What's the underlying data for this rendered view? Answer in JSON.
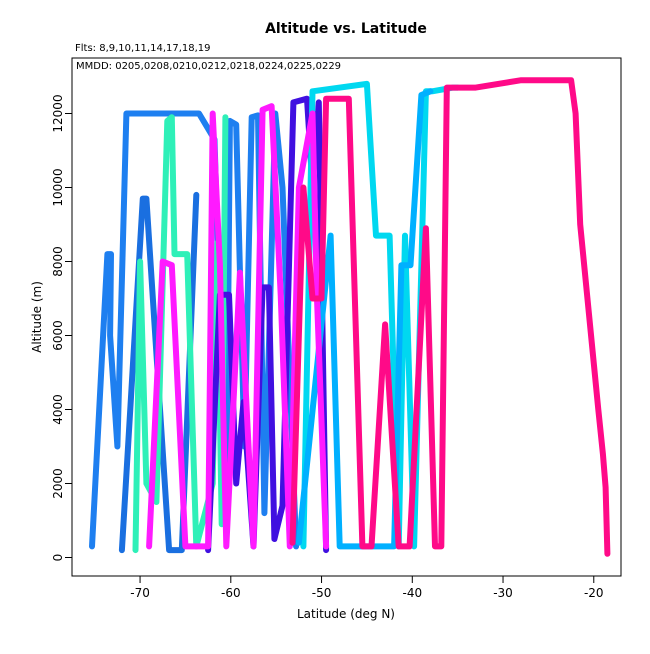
{
  "chart_data": {
    "type": "line",
    "title": "Altitude vs. Latitude",
    "subtitle": "Flts: 8,9,10,11,14,17,18,19",
    "annotation": "MMDD: 0205,0208,0210,0212,0218,0224,0225,0229",
    "xlabel": "Latitude (deg N)",
    "ylabel": "Altitude (m)",
    "xlim": [
      -77.5,
      -17
    ],
    "ylim": [
      -500,
      13500
    ],
    "x_ticks": [
      -70,
      -60,
      -50,
      -40,
      -30,
      -20
    ],
    "y_ticks": [
      0,
      2000,
      4000,
      6000,
      8000,
      10000,
      12000
    ],
    "grid": false,
    "series": [
      {
        "color": "#1e7ff0",
        "x": [
          -75.3,
          -73.6,
          -73.2,
          -73.3,
          -72.5,
          -71.5,
          -63.5,
          -61.8,
          -60.5,
          -60.1,
          -59.4,
          -58.5,
          -57.7,
          -57.0,
          -56.3,
          -55.1,
          -54.3,
          -52.8
        ],
        "y": [
          300,
          8200,
          8200,
          6000,
          3000,
          12000,
          12000,
          11300,
          900,
          11800,
          11700,
          3000,
          11900,
          11950,
          1200,
          12000,
          10000,
          300
        ]
      },
      {
        "color": "#1a6fe0",
        "x": [
          -72.0,
          -69.7,
          -69.3,
          -66.8,
          -65.4,
          -63.8
        ],
        "y": [
          200,
          9700,
          9700,
          200,
          200,
          9800
        ]
      },
      {
        "color": "#2ef0b8",
        "x": [
          -70.5,
          -70.0,
          -69.3,
          -68.2,
          -67.0,
          -66.5,
          -66.2,
          -64.8,
          -63.8,
          -62.0,
          -61.5,
          -61.0,
          -60.6
        ],
        "y": [
          200,
          8000,
          2000,
          1500,
          11800,
          11900,
          8200,
          8200,
          300,
          2000,
          8500,
          900,
          11900
        ]
      },
      {
        "color": "#4010e0",
        "x": [
          -62.5,
          -61.2,
          -60.2,
          -59.4,
          -58.6,
          -57.5,
          -56.5,
          -55.8,
          -55.2,
          -54.3,
          -53.1,
          -51.6,
          -51.0,
          -50.3,
          -49.5
        ],
        "y": [
          200,
          7100,
          7100,
          2000,
          4200,
          300,
          7300,
          7300,
          500,
          1400,
          12300,
          12400,
          10000,
          12300,
          200
        ]
      },
      {
        "color": "#00d8f0",
        "x": [
          -52.0,
          -51.0,
          -45.0,
          -44.0,
          -42.5,
          -41.5,
          -40.8,
          -39.8,
          -38.5,
          -37.8,
          -35.5,
          -35.0
        ],
        "y": [
          300,
          12600,
          12800,
          8700,
          8700,
          300,
          8700,
          300,
          12600,
          12600,
          12700,
          12700
        ]
      },
      {
        "color": "#00b0ff",
        "x": [
          -52.5,
          -49.0,
          -48.0,
          -42.0,
          -41.2,
          -40.2,
          -39.0,
          -38.0
        ],
        "y": [
          400,
          8700,
          300,
          300,
          7900,
          7900,
          12500,
          12600
        ]
      },
      {
        "color": "#ff1aff",
        "x": [
          -69.0,
          -67.5,
          -66.5,
          -65.0,
          -62.5,
          -62.0,
          -61.2,
          -60.5,
          -59.0,
          -57.5,
          -56.5,
          -55.5,
          -54.5,
          -53.5,
          -52.5,
          -51.0,
          -50.5,
          -49.5
        ],
        "y": [
          300,
          8000,
          7900,
          300,
          300,
          12000,
          7900,
          300,
          7700,
          300,
          12100,
          12200,
          7100,
          300,
          10000,
          12000,
          7000,
          300
        ]
      },
      {
        "color": "#ff0a88",
        "x": [
          -53.2,
          -52.0,
          -51.0,
          -50.0,
          -49.5,
          -47.0,
          -45.5,
          -44.5,
          -43.0,
          -41.5,
          -40.3,
          -38.5,
          -37.5,
          -36.8,
          -36.2,
          -35.2,
          -33.0,
          -28.0,
          -22.5,
          -22.0,
          -21.5,
          -19.5,
          -19.0,
          -18.7,
          -18.5
        ],
        "y": [
          400,
          10000,
          7000,
          7000,
          12400,
          12400,
          300,
          300,
          6300,
          300,
          300,
          8900,
          300,
          300,
          12700,
          12700,
          12700,
          12900,
          12900,
          12000,
          9000,
          4000,
          2800,
          1900,
          100
        ]
      }
    ]
  }
}
